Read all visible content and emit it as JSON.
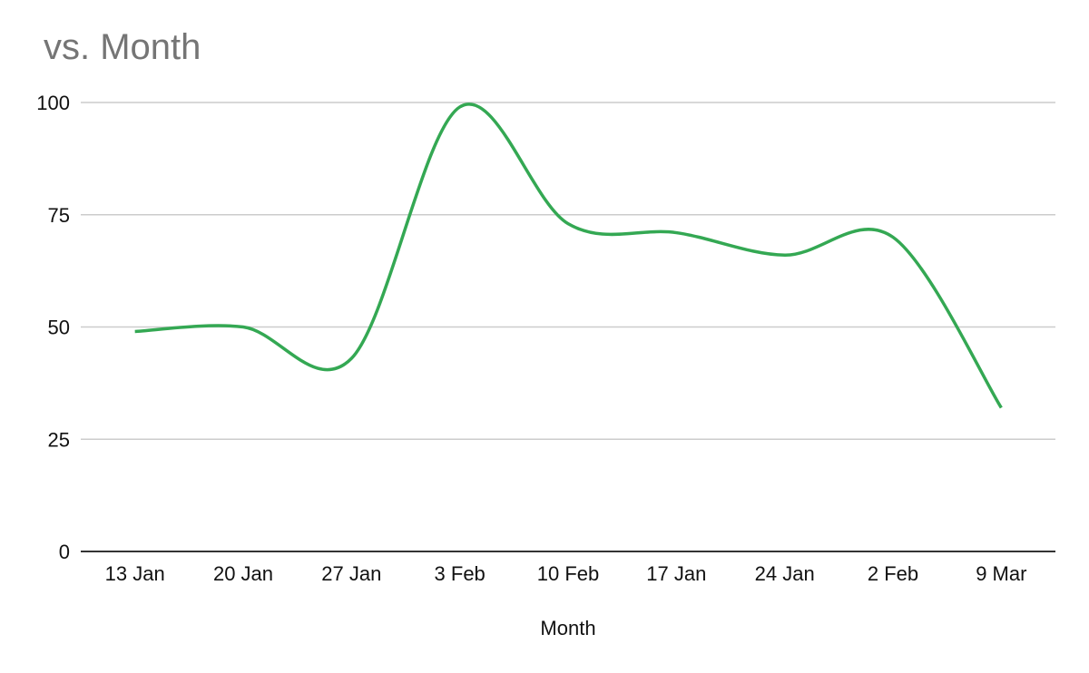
{
  "chart_data": {
    "type": "line",
    "title": "vs. Month",
    "xlabel": "Month",
    "ylabel": "",
    "categories": [
      "13 Jan",
      "20 Jan",
      "27 Jan",
      "3 Feb",
      "10 Feb",
      "17 Jan",
      "24 Jan",
      "2 Feb",
      "9 Mar"
    ],
    "series": [
      {
        "values": [
          49,
          50,
          43,
          99,
          73,
          71,
          66,
          70,
          32
        ]
      }
    ],
    "ylim": [
      0,
      100
    ],
    "yticks": [
      0,
      25,
      50,
      75,
      100
    ],
    "grid": true,
    "smooth": true,
    "legend": "none",
    "line_color": "#34a853",
    "grid_color": "#cccccc",
    "axis_color": "#333333"
  }
}
